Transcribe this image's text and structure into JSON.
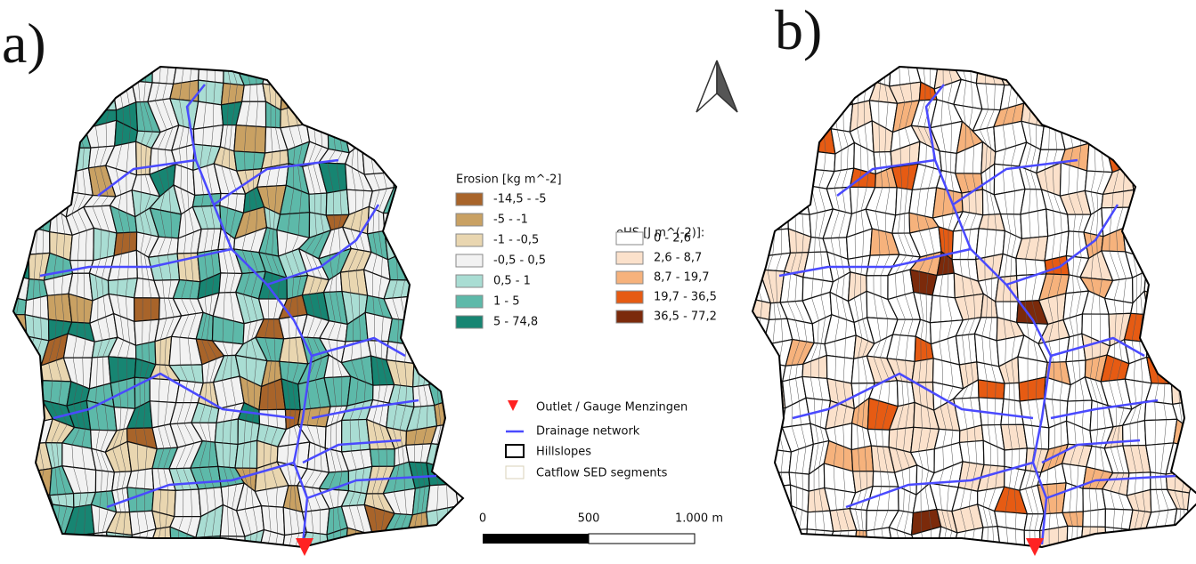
{
  "panels": [
    {
      "label": "a)"
    },
    {
      "label": "b)"
    }
  ],
  "erosion_legend": {
    "title": "Erosion [kg m^-2]",
    "items": [
      {
        "label": "-14,5 - -5",
        "color": "#a8642a"
      },
      {
        "label": "-5 - -1",
        "color": "#c9a163"
      },
      {
        "label": "-1 - -0,5",
        "color": "#e9d6b0"
      },
      {
        "label": "-0,5 - 0,5",
        "color": "#f2f2f2"
      },
      {
        "label": "0,5 - 1",
        "color": "#a9ddd3"
      },
      {
        "label": "1 - 5",
        "color": "#5db9a9"
      },
      {
        "label": "5 - 74,8",
        "color": "#178572"
      }
    ]
  },
  "ehs_legend": {
    "title": "eHS [J m^(-2)]:",
    "items": [
      {
        "label": "0 - 2,6",
        "color": "#ffffff"
      },
      {
        "label": "2,6 - 8,7",
        "color": "#fbe1cb"
      },
      {
        "label": "8,7 - 19,7",
        "color": "#f6b27c"
      },
      {
        "label": "19,7 - 36,5",
        "color": "#e65b13"
      },
      {
        "label": "36,5 - 77,2",
        "color": "#7b2a0b"
      }
    ]
  },
  "map_legend": {
    "items": [
      "Outlet / Gauge Menzingen",
      "Drainage network",
      "Hillslopes",
      "Catflow SED segments"
    ]
  },
  "scale_bar": {
    "labels": [
      "0",
      "500",
      "1.000 m"
    ]
  }
}
